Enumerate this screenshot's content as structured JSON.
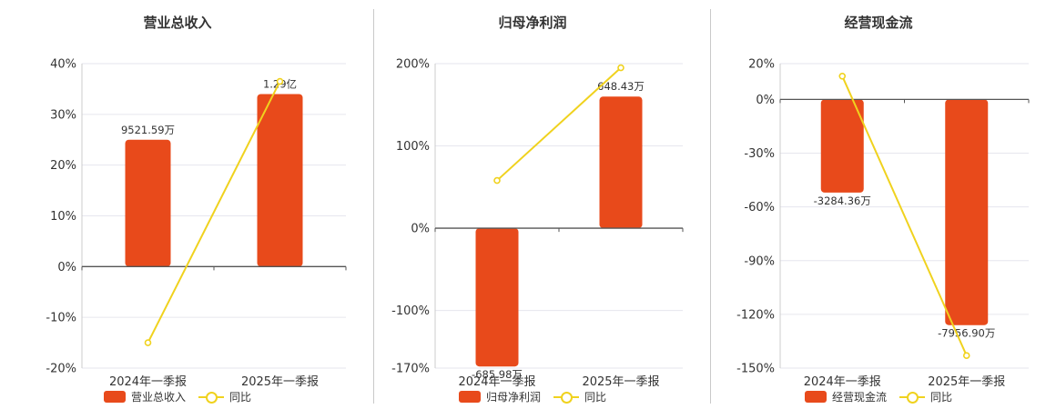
{
  "colors": {
    "bar": "#e84a1b",
    "line": "#f0d21e",
    "grid": "#e6e6ee",
    "axis": "#555555"
  },
  "chart_data": [
    {
      "type": "bar",
      "title": "营业总收入",
      "categories": [
        "2024年一季报",
        "2025年一季报"
      ],
      "series": [
        {
          "name": "营业总收入",
          "type": "bar",
          "values": [
            25,
            34
          ],
          "labels": [
            "9521.59万",
            "1.29亿"
          ]
        },
        {
          "name": "同比",
          "type": "line",
          "values": [
            -15,
            36.5
          ]
        }
      ],
      "ylim": [
        -20,
        40
      ],
      "yticks": [
        40,
        30,
        20,
        10,
        0,
        -10,
        -20
      ],
      "ytick_labels": [
        "40%",
        "30%",
        "20%",
        "10%",
        "0%",
        "-10%",
        "-20%"
      ],
      "grid": true,
      "legend_position": "bottom"
    },
    {
      "type": "bar",
      "title": "归母净利润",
      "categories": [
        "2024年一季报",
        "2025年一季报"
      ],
      "series": [
        {
          "name": "归母净利润",
          "type": "bar",
          "values": [
            -168,
            160
          ],
          "labels": [
            "-685.98万",
            "648.43万"
          ]
        },
        {
          "name": "同比",
          "type": "line",
          "values": [
            58,
            195
          ]
        }
      ],
      "ylim": [
        -170,
        200
      ],
      "yticks": [
        200,
        100,
        0,
        -100,
        -170
      ],
      "ytick_labels": [
        "200%",
        "100%",
        "0%",
        "-100%",
        "-170%"
      ],
      "grid": true,
      "legend_position": "bottom"
    },
    {
      "type": "bar",
      "title": "经营现金流",
      "categories": [
        "2024年一季报",
        "2025年一季报"
      ],
      "series": [
        {
          "name": "经营现金流",
          "type": "bar",
          "values": [
            -52,
            -126
          ],
          "labels": [
            "-3284.36万",
            "-7956.90万"
          ]
        },
        {
          "name": "同比",
          "type": "line",
          "values": [
            13,
            -143
          ]
        }
      ],
      "ylim": [
        -150,
        20
      ],
      "yticks": [
        20,
        0,
        -30,
        -60,
        -90,
        -120,
        -150
      ],
      "ytick_labels": [
        "20%",
        "0%",
        "-30%",
        "-60%",
        "-90%",
        "-120%",
        "-150%"
      ],
      "grid": true,
      "legend_position": "bottom"
    }
  ]
}
